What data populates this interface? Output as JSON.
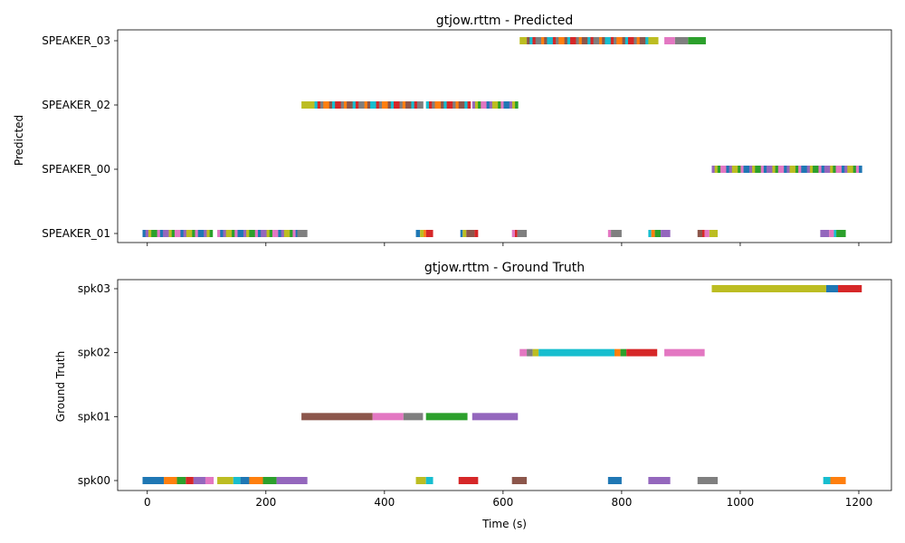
{
  "palette": [
    "#1f77b4",
    "#ff7f0e",
    "#2ca02c",
    "#d62728",
    "#9467bd",
    "#8c564b",
    "#e377c2",
    "#7f7f7f",
    "#bcbd22",
    "#17becf"
  ],
  "shared_x": {
    "label": "Time (s)",
    "xlim": [
      -50,
      1255
    ],
    "ticks": [
      0,
      200,
      400,
      600,
      800,
      1000,
      1200
    ],
    "tick_labels": [
      "0",
      "200",
      "400",
      "600",
      "800",
      "1000",
      "1200"
    ]
  },
  "chart_data": [
    {
      "type": "timeline",
      "title": "gtjow.rttm - Predicted",
      "ylabel": "Predicted",
      "xlabel": "",
      "show_x_tick_labels": false,
      "grid": false,
      "rows": [
        "SPEAKER_01",
        "SPEAKER_00",
        "SPEAKER_02",
        "SPEAKER_03"
      ],
      "segments": [
        {
          "row": 0,
          "start": -8,
          "end": 110,
          "striped": true,
          "c": 0
        },
        {
          "row": 0,
          "start": 118,
          "end": 255,
          "striped": true,
          "c": 6
        },
        {
          "row": 0,
          "start": 253,
          "end": 270,
          "c": 7
        },
        {
          "row": 0,
          "start": 453,
          "end": 460,
          "c": 0
        },
        {
          "row": 0,
          "start": 460,
          "end": 466,
          "c": 8
        },
        {
          "row": 0,
          "start": 466,
          "end": 470,
          "c": 1
        },
        {
          "row": 0,
          "start": 470,
          "end": 482,
          "c": 3
        },
        {
          "row": 0,
          "start": 528,
          "end": 532,
          "c": 0
        },
        {
          "row": 0,
          "start": 532,
          "end": 538,
          "c": 8
        },
        {
          "row": 0,
          "start": 538,
          "end": 552,
          "c": 5
        },
        {
          "row": 0,
          "start": 552,
          "end": 558,
          "c": 3
        },
        {
          "row": 0,
          "start": 615,
          "end": 620,
          "c": 6
        },
        {
          "row": 0,
          "start": 620,
          "end": 624,
          "c": 3
        },
        {
          "row": 0,
          "start": 624,
          "end": 640,
          "c": 7
        },
        {
          "row": 0,
          "start": 777,
          "end": 782,
          "c": 6
        },
        {
          "row": 0,
          "start": 782,
          "end": 800,
          "c": 7
        },
        {
          "row": 0,
          "start": 845,
          "end": 850,
          "c": 9
        },
        {
          "row": 0,
          "start": 850,
          "end": 856,
          "c": 1
        },
        {
          "row": 0,
          "start": 856,
          "end": 866,
          "c": 2
        },
        {
          "row": 0,
          "start": 866,
          "end": 882,
          "c": 4
        },
        {
          "row": 0,
          "start": 928,
          "end": 936,
          "c": 5
        },
        {
          "row": 0,
          "start": 936,
          "end": 940,
          "c": 3
        },
        {
          "row": 0,
          "start": 940,
          "end": 948,
          "c": 6
        },
        {
          "row": 0,
          "start": 948,
          "end": 962,
          "c": 8
        },
        {
          "row": 0,
          "start": 1135,
          "end": 1150,
          "c": 4
        },
        {
          "row": 0,
          "start": 1150,
          "end": 1158,
          "c": 6
        },
        {
          "row": 0,
          "start": 1158,
          "end": 1162,
          "c": 9
        },
        {
          "row": 0,
          "start": 1162,
          "end": 1178,
          "c": 2
        },
        {
          "row": 1,
          "start": 952,
          "end": 1205,
          "striped": true,
          "c": 4
        },
        {
          "row": 2,
          "start": 260,
          "end": 282,
          "c": 8
        },
        {
          "row": 2,
          "start": 282,
          "end": 465,
          "striped": true,
          "c": 9
        },
        {
          "row": 2,
          "start": 470,
          "end": 545,
          "striped": true,
          "c": 9
        },
        {
          "row": 2,
          "start": 548,
          "end": 625,
          "striped": true,
          "c": 4
        },
        {
          "row": 3,
          "start": 628,
          "end": 640,
          "c": 8
        },
        {
          "row": 3,
          "start": 640,
          "end": 845,
          "striped": true,
          "c": 5
        },
        {
          "row": 3,
          "start": 845,
          "end": 862,
          "c": 8
        },
        {
          "row": 3,
          "start": 872,
          "end": 890,
          "c": 6
        },
        {
          "row": 3,
          "start": 890,
          "end": 912,
          "c": 7
        },
        {
          "row": 3,
          "start": 912,
          "end": 942,
          "c": 2
        }
      ]
    },
    {
      "type": "timeline",
      "title": "gtjow.rttm - Ground Truth",
      "ylabel": "Ground Truth",
      "xlabel": "Time (s)",
      "show_x_tick_labels": true,
      "grid": false,
      "rows": [
        "spk00",
        "spk01",
        "spk02",
        "spk03"
      ],
      "segments": [
        {
          "row": 0,
          "start": -8,
          "end": 28,
          "c": 0
        },
        {
          "row": 0,
          "start": 28,
          "end": 50,
          "c": 1
        },
        {
          "row": 0,
          "start": 50,
          "end": 65,
          "c": 2
        },
        {
          "row": 0,
          "start": 65,
          "end": 78,
          "c": 3
        },
        {
          "row": 0,
          "start": 78,
          "end": 98,
          "c": 4
        },
        {
          "row": 0,
          "start": 98,
          "end": 112,
          "c": 6
        },
        {
          "row": 0,
          "start": 118,
          "end": 145,
          "c": 8
        },
        {
          "row": 0,
          "start": 145,
          "end": 157,
          "c": 9
        },
        {
          "row": 0,
          "start": 157,
          "end": 172,
          "c": 0
        },
        {
          "row": 0,
          "start": 172,
          "end": 195,
          "c": 1
        },
        {
          "row": 0,
          "start": 195,
          "end": 218,
          "c": 2
        },
        {
          "row": 0,
          "start": 218,
          "end": 270,
          "c": 4
        },
        {
          "row": 0,
          "start": 453,
          "end": 470,
          "c": 8
        },
        {
          "row": 0,
          "start": 470,
          "end": 482,
          "c": 9
        },
        {
          "row": 0,
          "start": 525,
          "end": 558,
          "c": 3
        },
        {
          "row": 0,
          "start": 615,
          "end": 640,
          "c": 5
        },
        {
          "row": 0,
          "start": 777,
          "end": 800,
          "c": 0
        },
        {
          "row": 0,
          "start": 845,
          "end": 882,
          "c": 4
        },
        {
          "row": 0,
          "start": 928,
          "end": 962,
          "c": 7
        },
        {
          "row": 0,
          "start": 1140,
          "end": 1152,
          "c": 9
        },
        {
          "row": 0,
          "start": 1152,
          "end": 1178,
          "c": 1
        },
        {
          "row": 1,
          "start": 260,
          "end": 380,
          "c": 5
        },
        {
          "row": 1,
          "start": 380,
          "end": 432,
          "c": 6
        },
        {
          "row": 1,
          "start": 432,
          "end": 465,
          "c": 7
        },
        {
          "row": 1,
          "start": 470,
          "end": 540,
          "c": 2
        },
        {
          "row": 1,
          "start": 548,
          "end": 625,
          "c": 4
        },
        {
          "row": 2,
          "start": 628,
          "end": 640,
          "c": 6
        },
        {
          "row": 2,
          "start": 640,
          "end": 650,
          "c": 7
        },
        {
          "row": 2,
          "start": 650,
          "end": 660,
          "c": 8
        },
        {
          "row": 2,
          "start": 660,
          "end": 788,
          "c": 9
        },
        {
          "row": 2,
          "start": 788,
          "end": 798,
          "c": 1
        },
        {
          "row": 2,
          "start": 798,
          "end": 808,
          "c": 2
        },
        {
          "row": 2,
          "start": 808,
          "end": 860,
          "c": 3
        },
        {
          "row": 2,
          "start": 872,
          "end": 940,
          "c": 6
        },
        {
          "row": 3,
          "start": 952,
          "end": 1145,
          "c": 8
        },
        {
          "row": 3,
          "start": 1145,
          "end": 1165,
          "c": 0
        },
        {
          "row": 3,
          "start": 1165,
          "end": 1205,
          "c": 3
        }
      ]
    }
  ]
}
